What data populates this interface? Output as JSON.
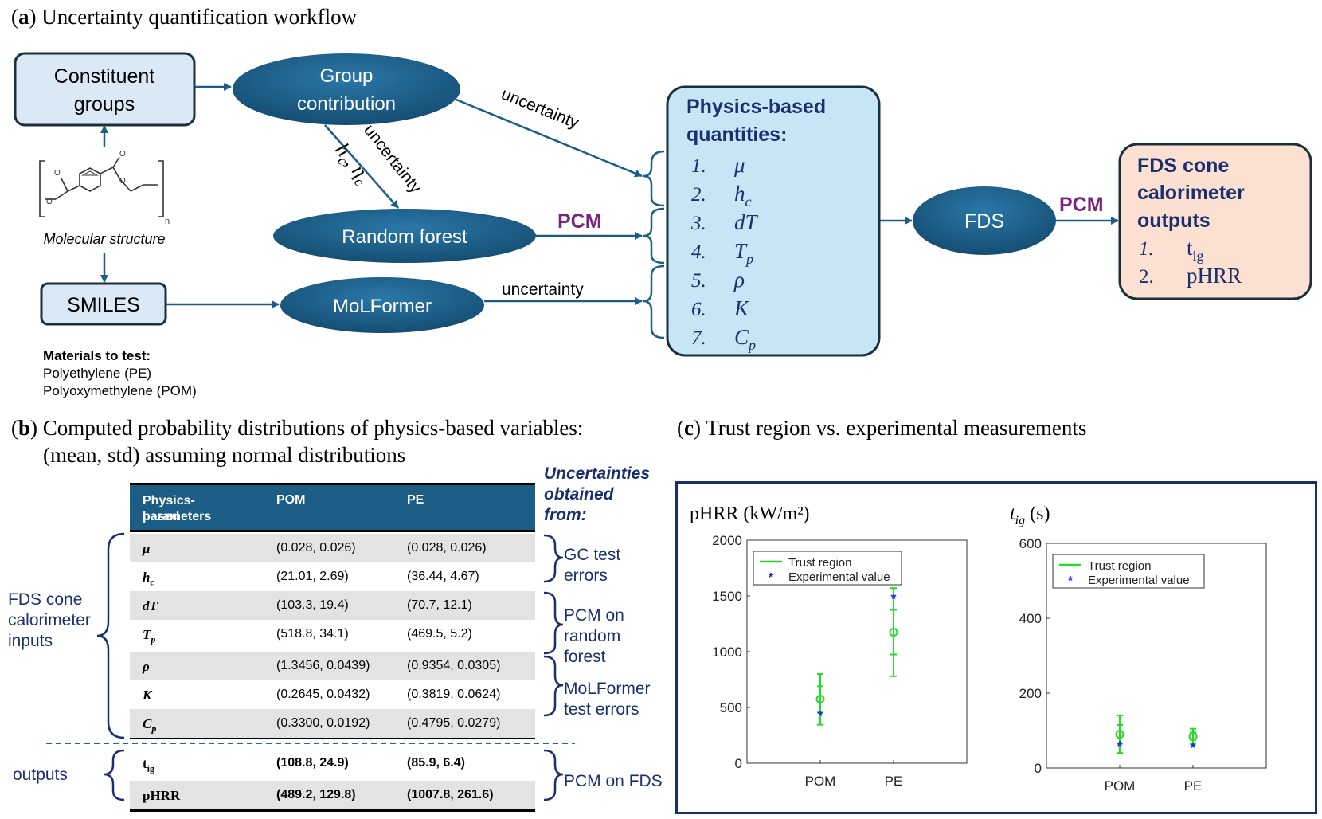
{
  "panel_a": {
    "label": "a",
    "title": ") Uncertainty quantification workflow",
    "constituent": [
      "Constituent",
      "groups"
    ],
    "group_contribution": [
      "Group",
      "contribution"
    ],
    "random_forest": "Random forest",
    "smiles": "SMILES",
    "molformer": "MoLFormer",
    "molecular_structure": "Molecular structure",
    "subscript_n": "n",
    "edge_labels": {
      "gc_to_phys": "uncertainty",
      "gc_to_rf": "uncertainty",
      "gc_to_rf_vars": "h",
      "pcm_rf": "PCM",
      "mol_to_phys": "uncertainty",
      "pcm_fds": "PCM"
    },
    "materials": {
      "heading": "Materials to test:",
      "items": [
        "Polyethylene (PE)",
        "Polyoxymethylene (POM)"
      ]
    },
    "physics_box": {
      "title": [
        "Physics-based",
        "quantities:"
      ],
      "items": [
        {
          "num": "1.",
          "sym": "μ",
          "sub": ""
        },
        {
          "num": "2.",
          "sym": "h",
          "sub": "c"
        },
        {
          "num": "3.",
          "sym": "dT",
          "sub": ""
        },
        {
          "num": "4.",
          "sym": "T",
          "sub": "p"
        },
        {
          "num": "5.",
          "sym": "ρ",
          "sub": ""
        },
        {
          "num": "6.",
          "sym": "K",
          "sub": ""
        },
        {
          "num": "7.",
          "sym": "C",
          "sub": "p"
        }
      ]
    },
    "fds": "FDS",
    "fds_outputs": {
      "title": [
        "FDS cone",
        "calorimeter",
        "outputs"
      ],
      "items": [
        {
          "num": "1.",
          "sym": "t",
          "sub": "ig"
        },
        {
          "num": "2.",
          "sym": "pHRR",
          "sub": ""
        }
      ]
    }
  },
  "panel_b": {
    "label": "b",
    "title_line1": ") Computed probability distributions of physics-based variables:",
    "title_line2": "(mean, std) assuming normal distributions",
    "headers": [
      "Physics-based",
      "parameters",
      "POM",
      "PE"
    ],
    "rows": [
      {
        "p": "μ",
        "sub": "",
        "pom": "(0.028, 0.026)",
        "pe": "(0.028, 0.026)"
      },
      {
        "p": "h",
        "sub": "c",
        "pom": "(21.01, 2.69)",
        "pe": "(36.44, 4.67)"
      },
      {
        "p": "dT",
        "sub": "",
        "pom": "(103.3, 19.4)",
        "pe": "(70.7, 12.1)"
      },
      {
        "p": "T",
        "sub": "p",
        "pom": "(518.8, 34.1)",
        "pe": "(469.5, 5.2)"
      },
      {
        "p": "ρ",
        "sub": "",
        "pom": "(1.3456, 0.0439)",
        "pe": "(0.9354, 0.0305)"
      },
      {
        "p": "K",
        "sub": "",
        "pom": "(0.2645, 0.0432)",
        "pe": "(0.3819, 0.0624)"
      },
      {
        "p": "C",
        "sub": "p",
        "pom": "(0.3300, 0.0192)",
        "pe": "(0.4795, 0.0279)"
      },
      {
        "p": "t",
        "sub": "ig",
        "pom": "(108.8, 24.9)",
        "pe": "(85.9, 6.4)"
      },
      {
        "p": "pHRR",
        "sub": "",
        "pom": "(489.2, 129.8)",
        "pe": "(1007.8, 261.6)"
      }
    ],
    "uncertainty_heading": [
      "Uncertainties",
      "obtained",
      "from:"
    ],
    "sources": [
      [
        "GC test",
        "errors"
      ],
      [
        "PCM on",
        "random",
        "forest"
      ],
      [
        "MoLFormer",
        "test errors"
      ],
      [
        "PCM on FDS"
      ]
    ],
    "inputs_label": [
      "FDS cone",
      "calorimeter",
      "inputs"
    ],
    "outputs_label": "outputs"
  },
  "panel_c": {
    "label": "c",
    "title": ") Trust region vs. experimental measurements",
    "legend": [
      "Trust region",
      "Experimental value"
    ],
    "colors": {
      "trust": "#22dd22",
      "exp": "#2222ee",
      "frame": "#1a2f6e"
    }
  },
  "chart_data": [
    {
      "type": "scatter",
      "title": "pHRR (kW/m²)",
      "categories": [
        "POM",
        "PE"
      ],
      "ylim": [
        0,
        2000
      ],
      "yticks": [
        0,
        500,
        1000,
        1500,
        2000
      ],
      "series": [
        {
          "name": "Trust region",
          "mean": [
            575,
            1175
          ],
          "inner": [
            [
              455,
              690
            ],
            [
              975,
              1375
            ]
          ],
          "outer": [
            [
              345,
              800
            ],
            [
              780,
              1570
            ]
          ]
        },
        {
          "name": "Experimental value",
          "values": [
            430,
            1480
          ]
        }
      ]
    },
    {
      "type": "scatter",
      "title_sym": "t",
      "title_sub": "ig",
      "title_unit": " (s)",
      "categories": [
        "POM",
        "PE"
      ],
      "ylim": [
        0,
        600
      ],
      "yticks": [
        0,
        200,
        400,
        600
      ],
      "series": [
        {
          "name": "Trust region",
          "mean": [
            90,
            85
          ],
          "inner": [
            [
              65,
              115
            ],
            [
              75,
              95
            ]
          ],
          "outer": [
            [
              40,
              140
            ],
            [
              65,
              105
            ]
          ]
        },
        {
          "name": "Experimental value",
          "values": [
            60,
            55
          ]
        }
      ]
    }
  ]
}
